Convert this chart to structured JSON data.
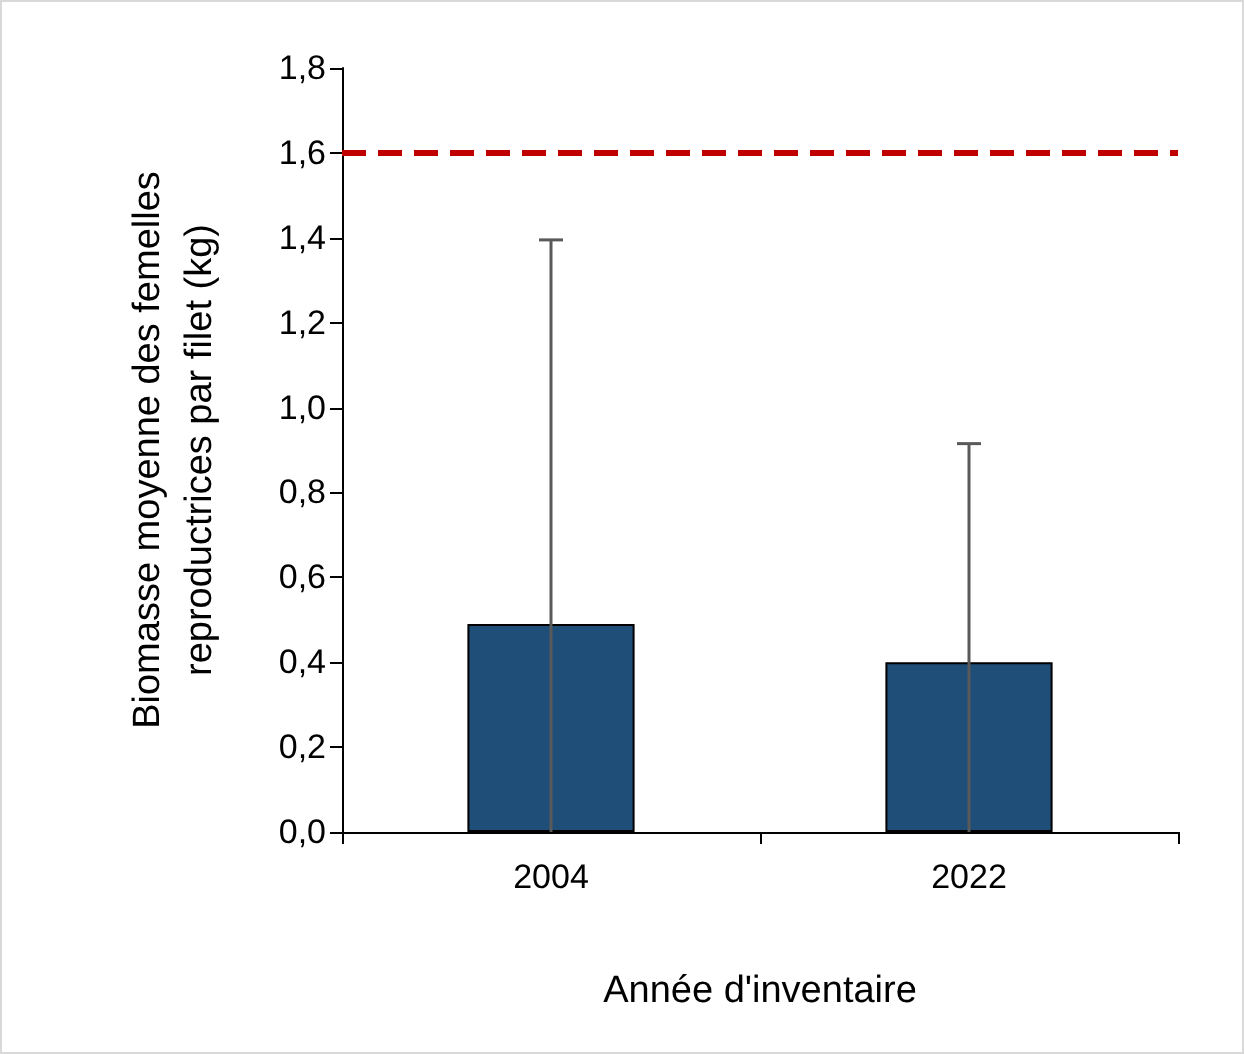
{
  "chart_data": {
    "type": "bar",
    "xlabel": "Année d'inventaire",
    "ylabel": "Biomasse moyenne des femelles reproductrices par filet (kg)",
    "categories": [
      "2004",
      "2022"
    ],
    "values": [
      0.49,
      0.4
    ],
    "color": "#1f4e79",
    "errors": [
      [
        0,
        1.395
      ],
      [
        0,
        0.915
      ]
    ],
    "ylim": [
      0,
      1.8
    ],
    "yticks": [
      {
        "value": 0,
        "label": "0,0"
      },
      {
        "value": 0.2,
        "label": "0,2"
      },
      {
        "value": 0.4,
        "label": "0,4"
      },
      {
        "value": 0.6,
        "label": "0,6"
      },
      {
        "value": 0.8,
        "label": "0,8"
      },
      {
        "value": 1.0,
        "label": "1,0"
      },
      {
        "value": 1.2,
        "label": "1,2"
      },
      {
        "value": 1.4,
        "label": "1,4"
      },
      {
        "value": 1.6,
        "label": "1,6"
      },
      {
        "value": 1.8,
        "label": "1,8"
      }
    ],
    "ref_lines": [
      {
        "axis": "y",
        "value": 1.6,
        "color": "#c00000",
        "line_style": "dashed"
      }
    ],
    "grid": false
  }
}
